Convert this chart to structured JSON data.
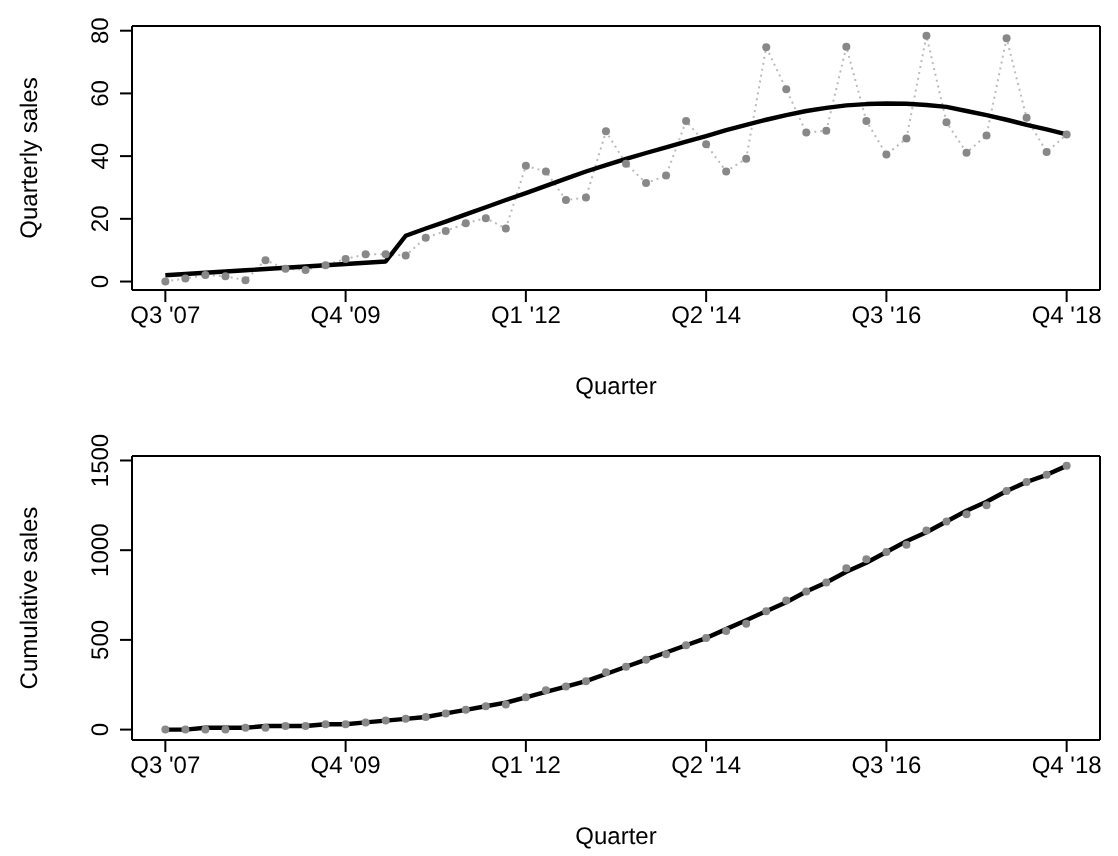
{
  "chart_data": [
    {
      "type": "line",
      "xlabel": "Quarter",
      "ylabel": "Quarterly sales",
      "ylim": [
        -2.7,
        81.5
      ],
      "yticks": [
        0,
        20,
        40,
        60,
        80
      ],
      "categories": [
        "Q3 '07",
        null,
        null,
        null,
        null,
        null,
        null,
        null,
        null,
        "Q4 '09",
        null,
        null,
        null,
        null,
        null,
        null,
        null,
        null,
        "Q1 '12",
        null,
        null,
        null,
        null,
        null,
        null,
        null,
        null,
        "Q2 '14",
        null,
        null,
        null,
        null,
        null,
        null,
        null,
        null,
        "Q3 '16",
        null,
        null,
        null,
        null,
        null,
        null,
        null,
        null,
        "Q4 '18"
      ],
      "series": [
        {
          "color": "#888888",
          "marker": "circle",
          "line_style": "dotted",
          "values": [
            0,
            1,
            2.1,
            1.7,
            0.4,
            6.8,
            4.1,
            3.7,
            5.2,
            7.2,
            8.7,
            8.7,
            8.3,
            14,
            16.1,
            18.6,
            20.2,
            16.9,
            36.9,
            35.1,
            26,
            26.8,
            47.9,
            37.6,
            31.4,
            33.8,
            51.2,
            43.8,
            35.1,
            39.2,
            74.7,
            61.3,
            47.5,
            48.1,
            74.9,
            51.2,
            40.5,
            45.6,
            78.4,
            50.8,
            41.1,
            46.6,
            77.6,
            52.2,
            41.3,
            46.9
          ]
        },
        {
          "color": "#000000",
          "marker": "none",
          "line_style": "solid",
          "values": [
            2,
            2.4,
            2.8,
            3.2,
            3.6,
            4,
            4.4,
            4.8,
            5.2,
            5.6,
            6,
            6.4,
            14.6,
            16.9,
            19.1,
            21.4,
            23.7,
            26,
            28.2,
            30.5,
            32.8,
            35.1,
            37.1,
            39.1,
            41,
            42.8,
            44.6,
            46.4,
            48.3,
            50,
            51.6,
            53.1,
            54.4,
            55.4,
            56.2,
            56.6,
            56.8,
            56.7,
            56.3,
            55.7,
            54.4,
            53.1,
            51.6,
            50,
            48.5,
            46.9
          ]
        }
      ]
    },
    {
      "type": "line",
      "xlabel": "Quarter",
      "ylabel": "Cumulative sales",
      "ylim": [
        -58,
        1525
      ],
      "yticks": [
        0,
        500,
        1000,
        1500
      ],
      "categories": [
        "Q3 '07",
        null,
        null,
        null,
        null,
        null,
        null,
        null,
        null,
        "Q4 '09",
        null,
        null,
        null,
        null,
        null,
        null,
        null,
        null,
        "Q1 '12",
        null,
        null,
        null,
        null,
        null,
        null,
        null,
        null,
        "Q2 '14",
        null,
        null,
        null,
        null,
        null,
        null,
        null,
        null,
        "Q3 '16",
        null,
        null,
        null,
        null,
        null,
        null,
        null,
        null,
        "Q4 '18"
      ],
      "series": [
        {
          "type": "scatter",
          "color": "#888888",
          "marker": "circle",
          "values": [
            0,
            0,
            0,
            0,
            10,
            10,
            20,
            20,
            30,
            30,
            40,
            50,
            60,
            70,
            90,
            110,
            130,
            140,
            180,
            220,
            240,
            270,
            320,
            350,
            390,
            420,
            470,
            510,
            550,
            590,
            660,
            720,
            770,
            820,
            900,
            950,
            990,
            1030,
            1110,
            1160,
            1200,
            1250,
            1330,
            1380,
            1420,
            1470
          ]
        },
        {
          "color": "#000000",
          "marker": "none",
          "line_style": "solid",
          "values": [
            0,
            0,
            10,
            10,
            10,
            20,
            20,
            20,
            30,
            30,
            40,
            50,
            60,
            70,
            90,
            110,
            130,
            150,
            180,
            210,
            240,
            270,
            310,
            350,
            390,
            430,
            470,
            510,
            560,
            610,
            660,
            710,
            770,
            820,
            880,
            930,
            990,
            1050,
            1100,
            1160,
            1220,
            1270,
            1330,
            1380,
            1420,
            1470
          ]
        }
      ]
    }
  ]
}
